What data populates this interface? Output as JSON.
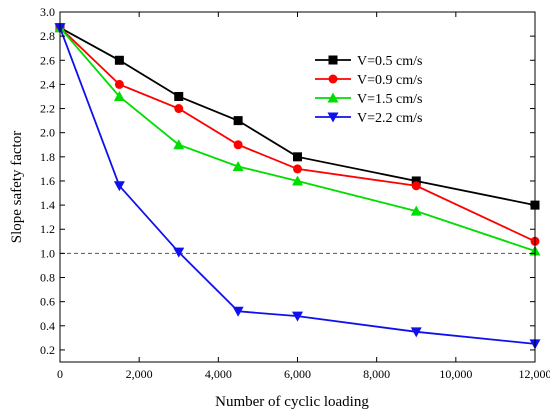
{
  "chart_data": {
    "type": "line",
    "title": "",
    "xlabel": "Number of cyclic loading",
    "ylabel": "Slope safety factor",
    "xlim": [
      0,
      12000
    ],
    "ylim": [
      0.1,
      3.0
    ],
    "x_ticks": [
      0,
      2000,
      4000,
      6000,
      8000,
      10000,
      12000
    ],
    "x_tick_labels": [
      "0",
      "2,000",
      "4,000",
      "6,000",
      "8,000",
      "10,000",
      "12,000"
    ],
    "y_ticks": [
      0.2,
      0.4,
      0.6,
      0.8,
      1.0,
      1.2,
      1.4,
      1.6,
      1.8,
      2.0,
      2.2,
      2.4,
      2.6,
      2.8,
      3.0
    ],
    "y_tick_labels": [
      "0.2",
      "0.4",
      "0.6",
      "0.8",
      "1.0",
      "1.2",
      "1.4",
      "1.6",
      "1.8",
      "2.0",
      "2.2",
      "2.4",
      "2.6",
      "2.8",
      "3.0"
    ],
    "grid": false,
    "legend_position": "top-right",
    "reference_line": {
      "y": 1.0,
      "style": "dashed",
      "color": "#555555"
    },
    "x": [
      0,
      1500,
      3000,
      4500,
      6000,
      9000,
      12000
    ],
    "series": [
      {
        "name": "V=0.5 cm/s",
        "color": "#000000",
        "marker": "square",
        "values": [
          2.87,
          2.6,
          2.3,
          2.1,
          1.8,
          1.6,
          1.4
        ]
      },
      {
        "name": "V=0.9 cm/s",
        "color": "#ff0000",
        "marker": "circle",
        "values": [
          2.87,
          2.4,
          2.2,
          1.9,
          1.7,
          1.56,
          1.1
        ]
      },
      {
        "name": "V=1.5 cm/s",
        "color": "#00dd00",
        "marker": "triangle-up",
        "values": [
          2.87,
          2.3,
          1.9,
          1.72,
          1.6,
          1.35,
          1.02
        ]
      },
      {
        "name": "V=2.2 cm/s",
        "color": "#1010ee",
        "marker": "triangle-down",
        "values": [
          2.87,
          1.56,
          1.01,
          0.52,
          0.48,
          0.35,
          0.25
        ]
      }
    ]
  }
}
